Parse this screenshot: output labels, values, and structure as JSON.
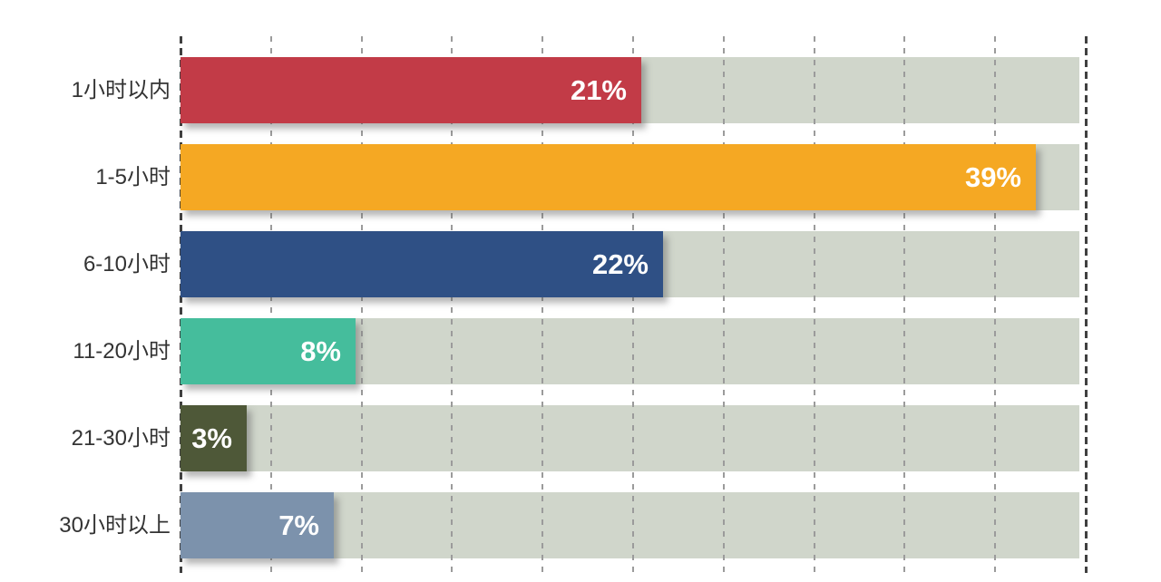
{
  "chart_data": {
    "type": "bar",
    "orientation": "horizontal",
    "title": "",
    "xlabel": "",
    "ylabel": "",
    "categories": [
      "1小时以内",
      "1-5小时",
      "6-10小时",
      "11-20小时",
      "21-30小时",
      "30小时以上"
    ],
    "values": [
      21,
      39,
      22,
      8,
      3,
      7
    ],
    "value_labels": [
      "21%",
      "39%",
      "22%",
      "8%",
      "3%",
      "7%"
    ],
    "bar_colors": [
      "#c23b47",
      "#f5a823",
      "#2f5085",
      "#45bd9c",
      "#4e5838",
      "#7c92ac"
    ],
    "track_color": "#d0d6cb",
    "gridline_color": "#9b9b9b",
    "axis_edge_color": "#404040",
    "category_label_color": "#333333",
    "value_label_color": "#ffffff",
    "xlim": [
      0,
      41
    ],
    "gridline_count": 11,
    "grid": "vertical-dashed",
    "legend": "none"
  }
}
